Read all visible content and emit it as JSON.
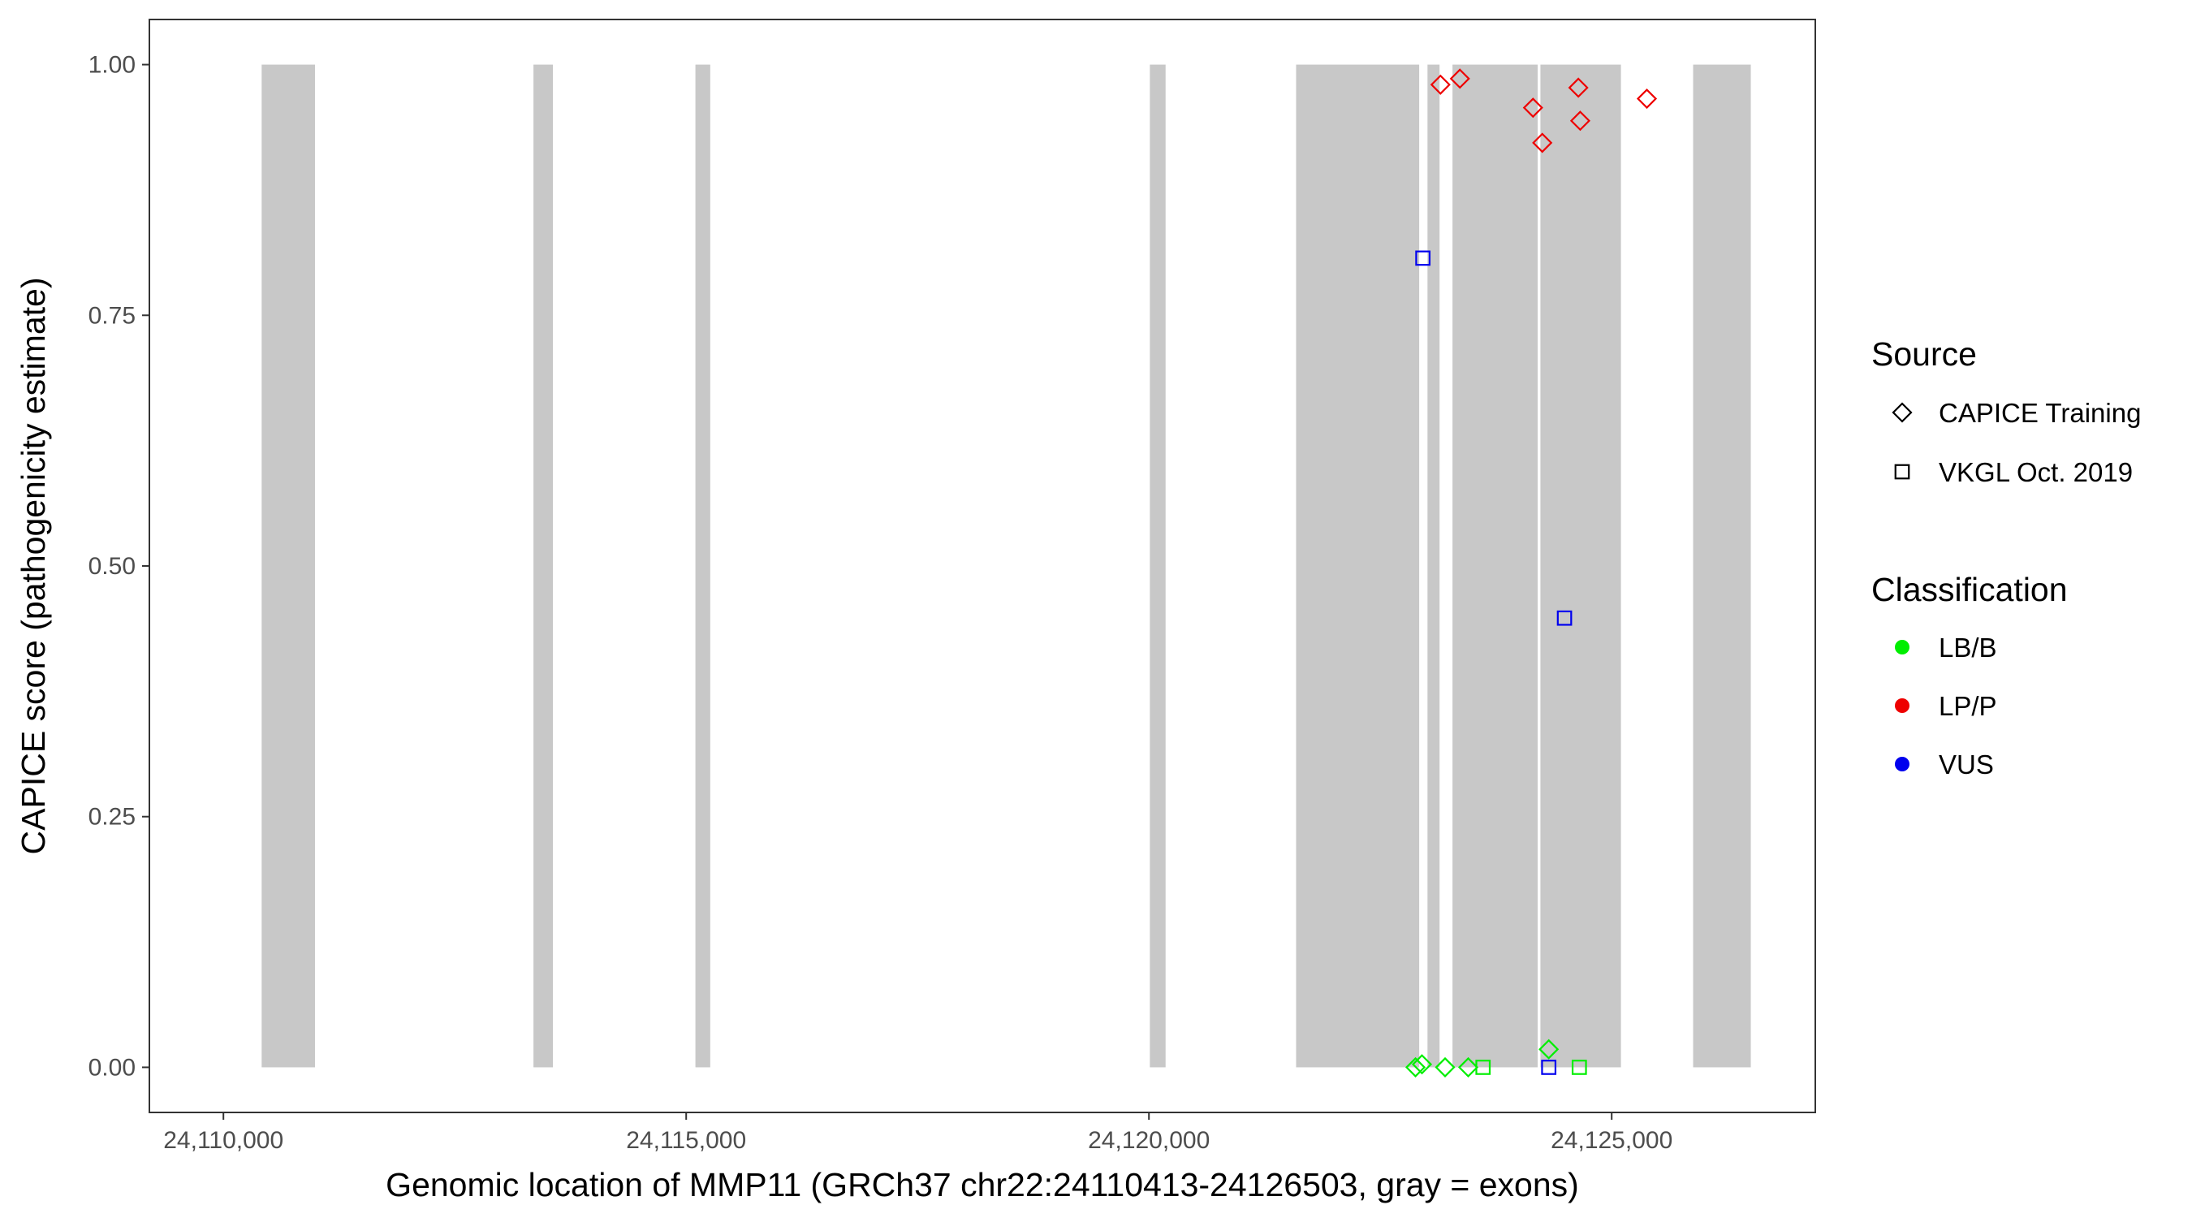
{
  "chart_data": {
    "type": "scatter",
    "xlabel": "Genomic location of MMP11 (GRCh37 chr22:24110413-24126503, gray = exons)",
    "ylabel": "CAPICE score (pathogenicity estimate)",
    "xlim": [
      24109200,
      24127200
    ],
    "ylim": [
      -0.045,
      1.045
    ],
    "x_ticks": [
      24110000,
      24115000,
      24120000,
      24125000
    ],
    "x_tick_labels": [
      "24,110,000",
      "24,115,000",
      "24,120,000",
      "24,125,000"
    ],
    "y_ticks": [
      0,
      0.25,
      0.5,
      0.75,
      1.0
    ],
    "y_tick_labels": [
      "0.00",
      "0.25",
      "0.50",
      "0.75",
      "1.00"
    ],
    "grid": false,
    "panel_border": true,
    "exon_color": "#c8c8c8",
    "exons": [
      [
        24110413,
        24110990
      ],
      [
        24113350,
        24113560
      ],
      [
        24115100,
        24115260
      ],
      [
        24120010,
        24120180
      ],
      [
        24121590,
        24122920
      ],
      [
        24123010,
        24123140
      ],
      [
        24123280,
        24124200
      ],
      [
        24124230,
        24125100
      ],
      [
        24125880,
        24126503
      ]
    ],
    "legend": {
      "position": "right",
      "source": {
        "title": "Source",
        "entries": [
          {
            "label": "CAPICE Training",
            "shape": "diamond"
          },
          {
            "label": "VKGL Oct. 2019",
            "shape": "square"
          }
        ]
      },
      "classification": {
        "title": "Classification",
        "entries": [
          {
            "label": "LB/B",
            "color": "#00ee00"
          },
          {
            "label": "LP/P",
            "color": "#ee0000"
          },
          {
            "label": "VUS",
            "color": "#0000ee"
          }
        ]
      }
    },
    "points": [
      {
        "x": 24123150,
        "y": 0.98,
        "source": "CAPICE Training",
        "class": "LP/P"
      },
      {
        "x": 24123360,
        "y": 0.986,
        "source": "CAPICE Training",
        "class": "LP/P"
      },
      {
        "x": 24124150,
        "y": 0.957,
        "source": "CAPICE Training",
        "class": "LP/P"
      },
      {
        "x": 24124640,
        "y": 0.977,
        "source": "CAPICE Training",
        "class": "LP/P"
      },
      {
        "x": 24124250,
        "y": 0.922,
        "source": "CAPICE Training",
        "class": "LP/P"
      },
      {
        "x": 24124660,
        "y": 0.944,
        "source": "CAPICE Training",
        "class": "LP/P"
      },
      {
        "x": 24125380,
        "y": 0.966,
        "source": "CAPICE Training",
        "class": "LP/P"
      },
      {
        "x": 24122960,
        "y": 0.807,
        "source": "VKGL Oct. 2019",
        "class": "VUS"
      },
      {
        "x": 24124490,
        "y": 0.448,
        "source": "VKGL Oct. 2019",
        "class": "VUS"
      },
      {
        "x": 24124320,
        "y": 0.0,
        "source": "VKGL Oct. 2019",
        "class": "VUS"
      },
      {
        "x": 24122880,
        "y": 0.0,
        "source": "CAPICE Training",
        "class": "LB/B"
      },
      {
        "x": 24122950,
        "y": 0.003,
        "source": "CAPICE Training",
        "class": "LB/B"
      },
      {
        "x": 24123200,
        "y": 0.0,
        "source": "CAPICE Training",
        "class": "LB/B"
      },
      {
        "x": 24123450,
        "y": 0.0,
        "source": "CAPICE Training",
        "class": "LB/B"
      },
      {
        "x": 24124320,
        "y": 0.018,
        "source": "CAPICE Training",
        "class": "LB/B"
      },
      {
        "x": 24123610,
        "y": 0.0,
        "source": "VKGL Oct. 2019",
        "class": "LB/B"
      },
      {
        "x": 24124650,
        "y": 0.0,
        "source": "VKGL Oct. 2019",
        "class": "LB/B"
      }
    ]
  }
}
